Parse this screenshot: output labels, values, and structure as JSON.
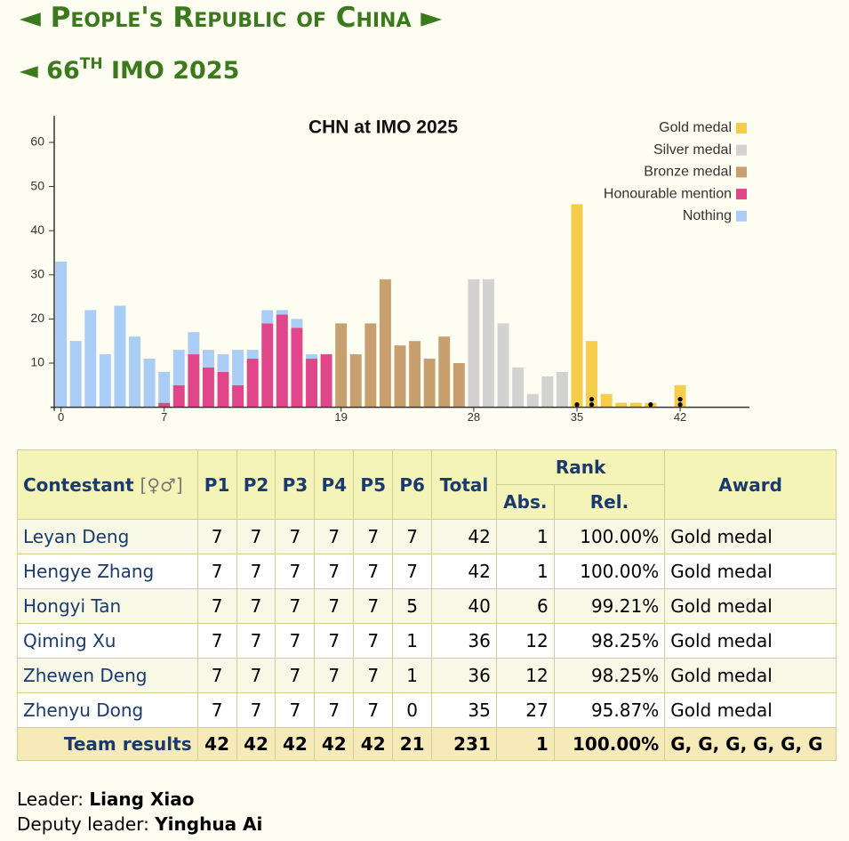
{
  "header": {
    "prev": "◄",
    "title": "People's Republic of China",
    "next": "►"
  },
  "subheader": {
    "prev": "◄",
    "ordinal": "66",
    "suffix": "TH",
    "title": "IMO 2025"
  },
  "chart_data": {
    "type": "bar",
    "stacked": true,
    "title": "CHN at IMO 2025",
    "legend": "top-right",
    "x": [
      0,
      1,
      2,
      3,
      4,
      5,
      6,
      7,
      8,
      9,
      10,
      11,
      12,
      13,
      14,
      15,
      16,
      17,
      18,
      19,
      20,
      21,
      22,
      23,
      24,
      25,
      26,
      27,
      28,
      29,
      30,
      31,
      32,
      33,
      34,
      35,
      36,
      37,
      38,
      39,
      40,
      41,
      42
    ],
    "series": [
      {
        "name": "Gold medal",
        "color": "#f5cd4a",
        "values": [
          null,
          null,
          null,
          null,
          null,
          null,
          null,
          null,
          null,
          null,
          null,
          null,
          null,
          null,
          null,
          null,
          null,
          null,
          null,
          null,
          null,
          null,
          null,
          null,
          null,
          null,
          null,
          null,
          null,
          null,
          null,
          null,
          null,
          null,
          null,
          46,
          15,
          3,
          1,
          1,
          1,
          null,
          5
        ]
      },
      {
        "name": "Silver medal",
        "color": "#d2d2d2",
        "values": [
          null,
          null,
          null,
          null,
          null,
          null,
          null,
          null,
          null,
          null,
          null,
          null,
          null,
          null,
          null,
          null,
          null,
          null,
          null,
          null,
          null,
          null,
          null,
          null,
          null,
          null,
          null,
          null,
          29,
          29,
          19,
          9,
          3,
          7,
          8,
          null,
          null,
          null,
          null,
          null,
          null,
          null,
          null
        ]
      },
      {
        "name": "Bronze medal",
        "color": "#c8a070",
        "values": [
          null,
          null,
          null,
          null,
          null,
          null,
          null,
          null,
          null,
          null,
          null,
          null,
          null,
          null,
          null,
          null,
          null,
          null,
          null,
          19,
          12,
          19,
          29,
          14,
          15,
          11,
          16,
          10,
          null,
          null,
          null,
          null,
          null,
          null,
          null,
          null,
          null,
          null,
          null,
          null,
          null,
          null,
          null
        ]
      },
      {
        "name": "Honourable mention",
        "color": "#e0468a",
        "values": [
          null,
          null,
          null,
          null,
          null,
          null,
          null,
          1,
          5,
          12,
          9,
          8,
          5,
          11,
          19,
          21,
          18,
          11,
          12,
          null,
          null,
          null,
          null,
          null,
          null,
          null,
          null,
          null,
          null,
          null,
          null,
          null,
          null,
          null,
          null,
          null,
          null,
          null,
          null,
          null,
          null,
          null,
          null
        ]
      },
      {
        "name": "Nothing",
        "color": "#a9cdf5",
        "values": [
          33,
          15,
          22,
          12,
          23,
          16,
          11,
          7,
          8,
          5,
          4,
          4,
          8,
          2,
          3,
          1,
          2,
          1,
          null,
          null,
          null,
          null,
          null,
          null,
          null,
          null,
          null,
          null,
          null,
          null,
          null,
          null,
          null,
          null,
          null,
          null,
          null,
          null,
          null,
          null,
          null,
          null,
          null
        ]
      }
    ],
    "highlight_scores": [
      42,
      42,
      40,
      36,
      36,
      35
    ],
    "xlim": [
      -0.7,
      46.7
    ],
    "xticks": [
      0,
      7,
      19,
      28,
      35,
      42
    ],
    "ylim": [
      0,
      66
    ],
    "yticks": [
      10,
      20,
      30,
      40,
      50,
      60
    ]
  },
  "table": {
    "header": {
      "contestant": "Contestant",
      "gender": "[♀♂]",
      "problems": [
        "P1",
        "P2",
        "P3",
        "P4",
        "P5",
        "P6"
      ],
      "total": "Total",
      "rank": "Rank",
      "abs": "Abs.",
      "rel": "Rel.",
      "award": "Award"
    },
    "rows": [
      [
        "Leyan Deng",
        7,
        7,
        7,
        7,
        7,
        7,
        42,
        1,
        "100.00%",
        "Gold medal"
      ],
      [
        "Hengye Zhang",
        7,
        7,
        7,
        7,
        7,
        7,
        42,
        1,
        "100.00%",
        "Gold medal"
      ],
      [
        "Hongyi Tan",
        7,
        7,
        7,
        7,
        7,
        5,
        40,
        6,
        "99.21%",
        "Gold medal"
      ],
      [
        "Qiming Xu",
        7,
        7,
        7,
        7,
        7,
        1,
        36,
        12,
        "98.25%",
        "Gold medal"
      ],
      [
        "Zhewen Deng",
        7,
        7,
        7,
        7,
        7,
        1,
        36,
        12,
        "98.25%",
        "Gold medal"
      ],
      [
        "Zhenyu Dong",
        7,
        7,
        7,
        7,
        7,
        0,
        35,
        27,
        "95.87%",
        "Gold medal"
      ]
    ],
    "team": {
      "label": "Team results",
      "scores": [
        42,
        42,
        42,
        42,
        42,
        21
      ],
      "total": 231,
      "abs": 1,
      "rel": "100.00%",
      "award": "G, G, G, G, G, G"
    }
  },
  "leaders": {
    "leader_label": "Leader:",
    "leader": "Liang Xiao",
    "deputy_label": "Deputy leader:",
    "deputy": "Yinghua Ai"
  }
}
